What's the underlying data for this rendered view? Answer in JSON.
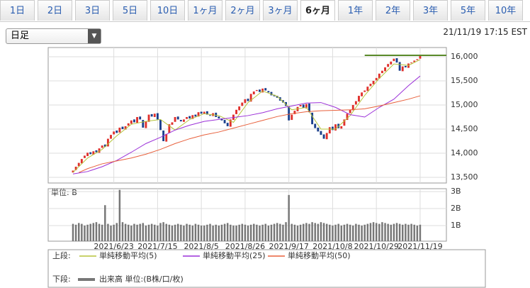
{
  "tabs": {
    "items": [
      "1日",
      "2日",
      "3日",
      "5日",
      "10日",
      "1ヶ月",
      "2ヶ月",
      "3ヶ月",
      "6ヶ月",
      "1年",
      "2年",
      "3年",
      "5年",
      "10年"
    ],
    "selected": 8
  },
  "dropdown": "日足",
  "timestamp": "21/11/19 17:15 EST",
  "legend_upper_label": "上段:",
  "legend_lower_label": "下段:",
  "chart_data": [
    {
      "type": "candlestick",
      "up_color": "#e0302c",
      "down_color": "#1a3f8c",
      "xlim": [
        -8.5,
        128
      ],
      "ylim": [
        13382,
        16191
      ],
      "xticks": [
        {
          "value": 14,
          "label": "2021/6/23"
        },
        {
          "value": 29,
          "label": "2021/7/15"
        },
        {
          "value": 44,
          "label": "2021/8/5"
        },
        {
          "value": 59,
          "label": "2021/8/26"
        },
        {
          "value": 74,
          "label": "2021/9/17"
        },
        {
          "value": 89,
          "label": "2021/10/8"
        },
        {
          "value": 104,
          "label": "2021/10/29"
        },
        {
          "value": 119,
          "label": "2021/11/19"
        }
      ],
      "yticks": [
        {
          "value": 13500,
          "label": "13,500"
        },
        {
          "value": 14000,
          "label": "14,000"
        },
        {
          "value": 14500,
          "label": "14,500"
        },
        {
          "value": 15000,
          "label": "15,000"
        },
        {
          "value": 15500,
          "label": "15,500"
        },
        {
          "value": 16000,
          "label": "16,000"
        }
      ],
      "grid": true,
      "open": [
        13600,
        13650,
        13730,
        13790,
        13900,
        13940,
        14020,
        13970,
        14060,
        14010,
        14110,
        14180,
        14140,
        14300,
        14390,
        14470,
        14430,
        14550,
        14490,
        14570,
        14610,
        14700,
        14630,
        14760,
        14690,
        14520,
        14650,
        14810,
        14750,
        14830,
        14690,
        14470,
        14240,
        14420,
        14590,
        14650,
        14760,
        14690,
        14650,
        14710,
        14770,
        14710,
        14800,
        14760,
        14860,
        14810,
        14870,
        14790,
        14770,
        14840,
        14760,
        14720,
        14690,
        14630,
        14550,
        14690,
        14810,
        14890,
        14980,
        15040,
        15130,
        15070,
        15220,
        15290,
        15320,
        15260,
        15350,
        15290,
        15270,
        15210,
        15190,
        15160,
        15100,
        15060,
        14970,
        14690,
        14810,
        14870,
        14970,
        15010,
        14930,
        15030,
        14840,
        14610,
        14530,
        14460,
        14390,
        14290,
        14410,
        14550,
        14470,
        14610,
        14510,
        14570,
        14690,
        14830,
        14890,
        15010,
        15070,
        15180,
        15270,
        15290,
        15390,
        15430,
        15510,
        15550,
        15660,
        15700,
        15790,
        15840,
        15910,
        15970,
        15890,
        15700,
        15810,
        15770,
        15870,
        15890,
        15930,
        15960
      ],
      "close": [
        13640,
        13720,
        13800,
        13880,
        13950,
        14010,
        13980,
        14040,
        14020,
        14100,
        14160,
        14130,
        14300,
        14380,
        14450,
        14420,
        14530,
        14500,
        14560,
        14620,
        14680,
        14640,
        14750,
        14700,
        14530,
        14660,
        14800,
        14760,
        14820,
        14700,
        14480,
        14250,
        14400,
        14600,
        14640,
        14750,
        14700,
        14660,
        14700,
        14750,
        14720,
        14790,
        14760,
        14850,
        14820,
        14860,
        14800,
        14780,
        14830,
        14750,
        14720,
        14680,
        14620,
        14560,
        14700,
        14800,
        14900,
        14970,
        15050,
        15120,
        15080,
        15230,
        15280,
        15310,
        15270,
        15340,
        15300,
        15260,
        15200,
        15180,
        15150,
        15090,
        15050,
        14980,
        14680,
        14800,
        14880,
        14960,
        15000,
        14940,
        15020,
        14850,
        14600,
        14520,
        14450,
        14380,
        14300,
        14420,
        14540,
        14480,
        14600,
        14520,
        14560,
        14700,
        14820,
        14900,
        15000,
        15080,
        15190,
        15260,
        15300,
        15380,
        15440,
        15500,
        15560,
        15650,
        15710,
        15780,
        15850,
        15900,
        15960,
        15880,
        15710,
        15800,
        15780,
        15860,
        15880,
        15920,
        15950,
        16030
      ],
      "series": [
        {
          "name": "単純移動平均(5)",
          "color": "#b5c43a",
          "x": [
            0,
            5,
            10,
            15,
            20,
            25,
            30,
            35,
            40,
            45,
            50,
            55,
            60,
            65,
            70,
            75,
            80,
            85,
            90,
            95,
            100,
            105,
            110,
            115,
            119
          ],
          "values": [
            13600,
            13900,
            14080,
            14360,
            14600,
            14660,
            14700,
            14480,
            14700,
            14820,
            14780,
            14640,
            15050,
            15290,
            15180,
            14900,
            14950,
            14500,
            14500,
            14780,
            15200,
            15550,
            15850,
            15820,
            15940
          ]
        },
        {
          "name": "単純移動平均(25)",
          "color": "#9b30d8",
          "x": [
            0,
            5,
            10,
            15,
            20,
            25,
            30,
            35,
            40,
            45,
            50,
            55,
            60,
            65,
            70,
            75,
            80,
            85,
            90,
            95,
            100,
            105,
            110,
            115,
            119
          ],
          "values": [
            13570,
            13620,
            13720,
            13850,
            14020,
            14200,
            14330,
            14480,
            14580,
            14660,
            14700,
            14740,
            14780,
            14840,
            14920,
            14980,
            15040,
            15050,
            14950,
            14800,
            14750,
            14950,
            15120,
            15400,
            15600
          ]
        },
        {
          "name": "単純移動平均(50)",
          "color": "#e8603c",
          "x": [
            2,
            5,
            10,
            15,
            20,
            25,
            30,
            35,
            40,
            45,
            50,
            55,
            60,
            65,
            70,
            75,
            80,
            85,
            90,
            95,
            100,
            105,
            110,
            115,
            119
          ],
          "values": [
            13600,
            13680,
            13780,
            13840,
            13900,
            13980,
            14080,
            14200,
            14300,
            14380,
            14440,
            14520,
            14600,
            14680,
            14760,
            14820,
            14860,
            14880,
            14890,
            14900,
            14920,
            14980,
            15050,
            15120,
            15190
          ]
        }
      ],
      "reference_line": {
        "value": 16030,
        "x": [
          100,
          128
        ],
        "color": "#5a8a2a"
      }
    },
    {
      "type": "bar",
      "y_label": "単位: B",
      "name": "出来高 単位:(B株/口/枚)",
      "color": "#777777",
      "xlim": [
        -8.5,
        128
      ],
      "ylim": [
        0.08,
        3.17
      ],
      "yticks": [
        {
          "value": 1,
          "label": "1B"
        },
        {
          "value": 2,
          "label": "2B"
        },
        {
          "value": 3,
          "label": "3B"
        }
      ],
      "values": [
        1.1,
        1.05,
        1.15,
        1.1,
        1.0,
        1.05,
        1.1,
        1.15,
        1.2,
        1.1,
        1.05,
        2.2,
        1.1,
        1.0,
        1.05,
        1.15,
        3.1,
        1.2,
        1.1,
        1.05,
        1.0,
        1.1,
        1.05,
        1.1,
        1.15,
        1.0,
        1.05,
        1.1,
        1.05,
        1.0,
        1.15,
        1.2,
        1.1,
        1.05,
        1.0,
        1.05,
        1.1,
        1.05,
        1.0,
        1.1,
        1.05,
        1.0,
        1.1,
        1.05,
        1.0,
        1.0,
        1.05,
        1.1,
        1.0,
        1.05,
        1.0,
        1.05,
        1.1,
        1.15,
        1.05,
        1.0,
        1.0,
        1.05,
        1.1,
        1.05,
        1.0,
        1.05,
        1.1,
        1.05,
        1.0,
        1.05,
        1.1,
        1.0,
        1.05,
        1.1,
        1.15,
        1.1,
        1.05,
        1.2,
        2.8,
        1.1,
        1.05,
        1.0,
        1.05,
        1.1,
        1.15,
        1.1,
        1.2,
        1.15,
        1.1,
        1.2,
        1.15,
        1.1,
        1.05,
        1.0,
        1.05,
        1.1,
        1.0,
        1.05,
        1.1,
        1.05,
        1.0,
        1.1,
        1.05,
        1.0,
        1.05,
        1.1,
        1.15,
        1.2,
        1.15,
        1.1,
        1.2,
        1.15,
        1.1,
        1.05,
        1.1,
        1.15,
        1.1,
        1.05,
        1.1,
        1.05,
        1.1,
        1.05,
        1.0,
        1.05
      ]
    }
  ]
}
